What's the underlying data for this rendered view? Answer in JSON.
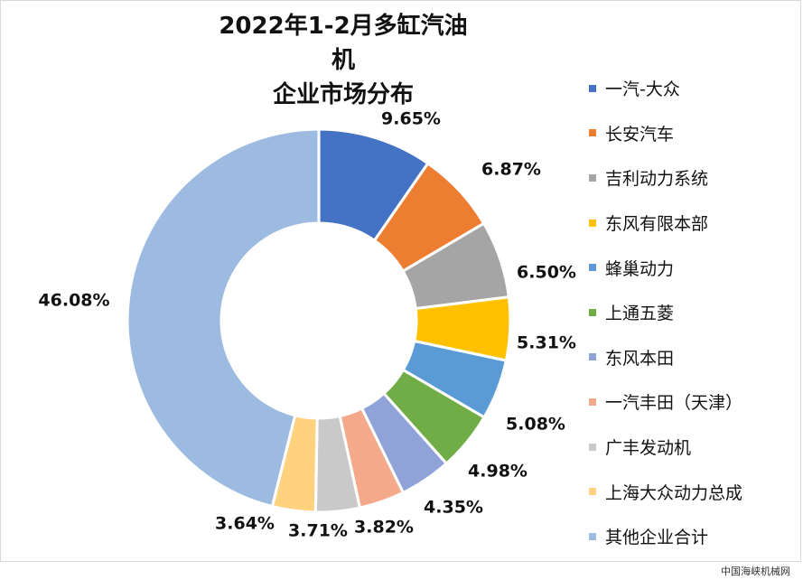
{
  "chart_data": {
    "type": "pie",
    "variant": "donut",
    "title": "2022年1-2月多缸汽油机\n企业市场分布",
    "categories": [
      "一汽-大众",
      "长安汽车",
      "吉利动力系统",
      "东风有限本部",
      "蜂巢动力",
      "上通五菱",
      "东风本田",
      "一汽丰田（天津）",
      "广丰发动机",
      "上海大众动力总成",
      "其他企业合计"
    ],
    "values": [
      9.65,
      6.87,
      6.5,
      5.31,
      5.08,
      4.98,
      4.35,
      3.82,
      3.71,
      3.64,
      46.08
    ],
    "labels": [
      "9.65%",
      "6.87%",
      "6.50%",
      "5.31%",
      "5.08%",
      "4.98%",
      "4.35%",
      "3.82%",
      "3.71%",
      "3.64%",
      "46.08%"
    ],
    "colors": [
      "#4472c4",
      "#ed7d31",
      "#a5a5a5",
      "#ffc000",
      "#5b9bd5",
      "#70ad47",
      "#8fa3d9",
      "#f4a98b",
      "#c9c9c9",
      "#ffd27f",
      "#9dbbe0"
    ],
    "legend_position": "right"
  },
  "watermark": "中国海峡机械网"
}
